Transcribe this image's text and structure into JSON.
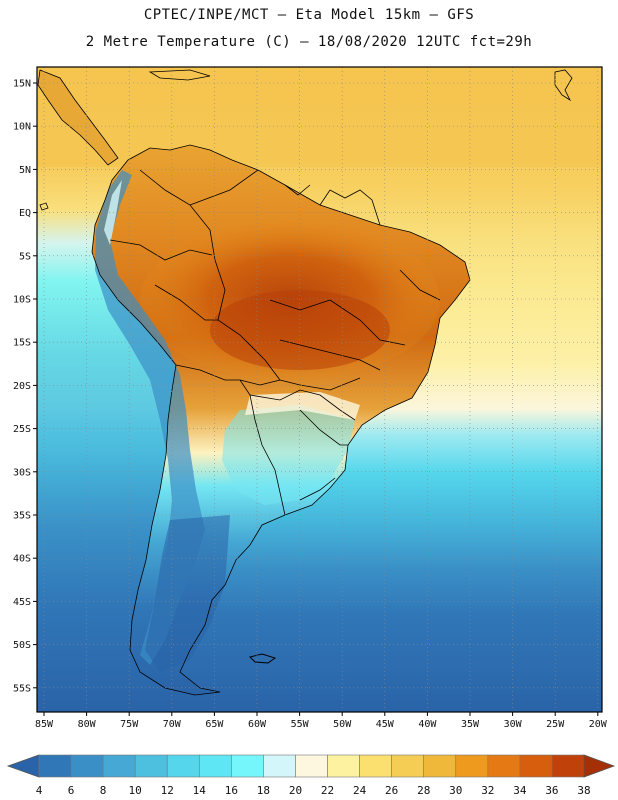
{
  "header": {
    "line1": "CPTEC/INPE/MCT –  Eta Model 15km – GFS",
    "line2": "2 Metre Temperature (C) – 18/08/2020 12UTC fct=29h"
  },
  "axes": {
    "lat_labels": [
      "15N",
      "10N",
      "5N",
      "EQ",
      "5S",
      "10S",
      "15S",
      "20S",
      "25S",
      "30S",
      "35S",
      "40S",
      "45S",
      "50S",
      "55S"
    ],
    "lon_labels": [
      "85W",
      "80W",
      "75W",
      "70W",
      "65W",
      "60W",
      "55W",
      "50W",
      "45W",
      "40W",
      "35W",
      "30W",
      "25W",
      "20W"
    ]
  },
  "colorbar": {
    "ticks": [
      "4",
      "6",
      "8",
      "10",
      "12",
      "14",
      "16",
      "18",
      "20",
      "22",
      "24",
      "26",
      "28",
      "30",
      "32",
      "34",
      "36",
      "38"
    ],
    "colors": [
      "#2a63a8",
      "#3077b8",
      "#3a8fc6",
      "#46a8d4",
      "#4dc0e0",
      "#55d6ec",
      "#5ee6f4",
      "#74f6fb",
      "#d2f6fa",
      "#fdf7e0",
      "#fdf2a0",
      "#fbe070",
      "#f5cd55",
      "#f0b83a",
      "#ee9a1e",
      "#e57a14",
      "#d65e0c",
      "#c0420a",
      "#a53008"
    ]
  }
}
